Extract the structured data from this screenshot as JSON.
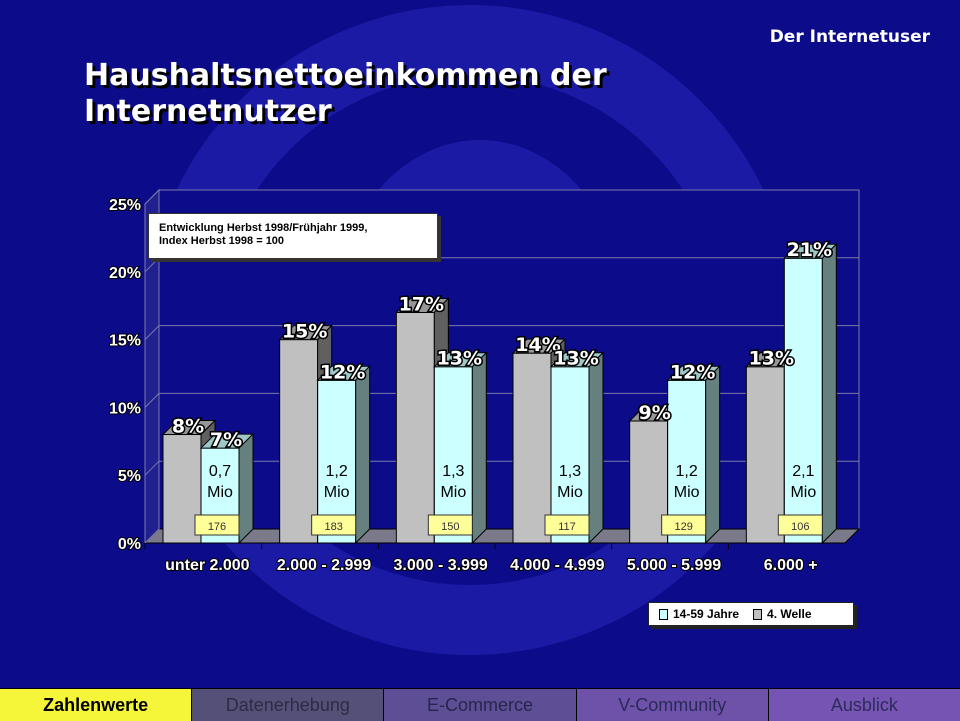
{
  "header": {
    "corner_label": "Der Internetuser",
    "title_line1": "Haushaltsnettoeinkommen der",
    "title_line2": "Internetnutzer"
  },
  "note": {
    "line1": "Entwicklung Herbst 1998/Frühjahr 1999,",
    "line2": "Index Herbst 1998 = 100"
  },
  "legend": {
    "items": [
      {
        "label": "14-59 Jahre",
        "color": "#ccffff"
      },
      {
        "label": "4. Welle",
        "color": "#c0c0c0"
      }
    ]
  },
  "nav": {
    "tabs": [
      "Zahlenwerte",
      "Datenerhebung",
      "E-Commerce",
      "V-Community",
      "Ausblick"
    ],
    "active": 0
  },
  "colors": {
    "background": "#0c0c8a",
    "bar_gray": "#c0c0c0",
    "bar_cyan": "#ccffff",
    "index_box": "#ffff99",
    "nav_active": "#f5f53a"
  },
  "chart_data": {
    "type": "bar",
    "style": "3d-grouped",
    "categories": [
      "unter 2.000",
      "2.000 - 2.999",
      "3.000 - 3.999",
      "4.000 - 4.999",
      "5.000 - 5.999",
      "6.000 +"
    ],
    "series": [
      {
        "name": "4. Welle",
        "color": "#c0c0c0",
        "values": [
          8,
          15,
          17,
          14,
          9,
          13
        ],
        "labels": [
          "8%",
          "15%",
          "17%",
          "14%",
          "9%",
          "13%"
        ]
      },
      {
        "name": "14-59 Jahre",
        "color": "#ccffff",
        "values": [
          7,
          12,
          13,
          13,
          12,
          21
        ],
        "labels": [
          "7%",
          "12%",
          "13%",
          "13%",
          "12%",
          "21%"
        ]
      }
    ],
    "bar_inner_labels": [
      [
        "0,7",
        "Mio"
      ],
      [
        "1,2",
        "Mio"
      ],
      [
        "1,3",
        "Mio"
      ],
      [
        "1,3",
        "Mio"
      ],
      [
        "1,2",
        "Mio"
      ],
      [
        "2,1",
        "Mio"
      ]
    ],
    "index_values": [
      "176",
      "183",
      "150",
      "117",
      "129",
      "106"
    ],
    "yticks": [
      "0%",
      "5%",
      "10%",
      "15%",
      "20%",
      "25%"
    ],
    "ylim": [
      0,
      25
    ],
    "grid": true,
    "legend_position": "bottom-right"
  }
}
